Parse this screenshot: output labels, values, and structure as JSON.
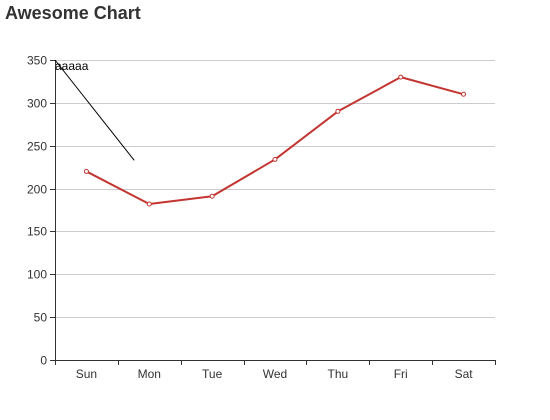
{
  "chart_data": {
    "type": "line",
    "title": "Awesome Chart",
    "xlabel": "",
    "ylabel": "",
    "categories": [
      "Sun",
      "Mon",
      "Tue",
      "Wed",
      "Thu",
      "Fri",
      "Sat"
    ],
    "series": [
      {
        "values": [
          220,
          182,
          191,
          234,
          290,
          330,
          310
        ]
      }
    ],
    "ylim": [
      0,
      350
    ],
    "yticks": [
      0,
      50,
      100,
      150,
      200,
      250,
      300,
      350
    ],
    "grid": true,
    "legend": "none",
    "annotation": {
      "text": "aaaaa",
      "from": {
        "category": "Sun",
        "value": 350
      },
      "to": {
        "category": "Mon",
        "value": 233
      }
    },
    "colors": {
      "line": "#c23531",
      "marker_fill": "#ffffff",
      "grid": "#cccccc",
      "axis": "#333333",
      "annotation_line": "#000000"
    }
  }
}
